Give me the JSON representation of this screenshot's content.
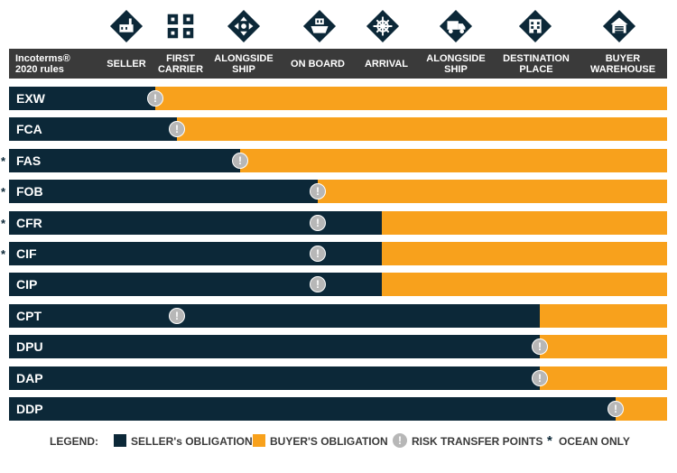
{
  "colors": {
    "seller": "#0c2838",
    "buyer": "#f8a11c",
    "risk": "#b7b7b7",
    "header": "#3a3a3a",
    "icon": "#0c2838"
  },
  "icons": [
    {
      "name": "factory-icon"
    },
    {
      "name": "carrier-boxes-icon"
    },
    {
      "name": "dock-crossroads-icon"
    },
    {
      "name": "ship-icon"
    },
    {
      "name": "arrival-ship-wheel-icon"
    },
    {
      "name": "truck-icon"
    },
    {
      "name": "destination-building-icon"
    },
    {
      "name": "warehouse-icon"
    }
  ],
  "header": {
    "title": "Incoterms®\n2020 rules",
    "columns": [
      "SELLER",
      "FIRST\nCARRIER",
      "ALONGSIDE\nSHIP",
      "ON BOARD",
      "ARRIVAL",
      "ALONGSIDE\nSHIP",
      "DESTINATION\nPLACE",
      "BUYER\nWAREHOUSE"
    ]
  },
  "rules": [
    {
      "code": "EXW",
      "ocean_only": false,
      "star": "",
      "seller_until_column": 1,
      "risk_column": 1
    },
    {
      "code": "FCA",
      "ocean_only": false,
      "star": "",
      "seller_until_column": 2,
      "risk_column": 2
    },
    {
      "code": "FAS",
      "ocean_only": true,
      "star": "*",
      "seller_until_column": 3,
      "risk_column": 3
    },
    {
      "code": "FOB",
      "ocean_only": true,
      "star": "*",
      "seller_until_column": 4,
      "risk_column": 4
    },
    {
      "code": "CFR",
      "ocean_only": true,
      "star": "*",
      "seller_until_column": 5,
      "risk_column": 4
    },
    {
      "code": "CIF",
      "ocean_only": true,
      "star": "*",
      "seller_until_column": 5,
      "risk_column": 4
    },
    {
      "code": "CIP",
      "ocean_only": false,
      "star": "",
      "seller_until_column": 5,
      "risk_column": 4
    },
    {
      "code": "CPT",
      "ocean_only": false,
      "star": "",
      "seller_until_column": 7,
      "risk_column": 2
    },
    {
      "code": "DPU",
      "ocean_only": false,
      "star": "",
      "seller_until_column": 7,
      "risk_column": 7
    },
    {
      "code": "DAP",
      "ocean_only": false,
      "star": "",
      "seller_until_column": 7,
      "risk_column": 7
    },
    {
      "code": "DDP",
      "ocean_only": false,
      "star": "",
      "seller_until_column": 8,
      "risk_column": 8
    }
  ],
  "risk_symbol": "!",
  "legend": {
    "title": "LEGEND:",
    "seller": "SELLER's OBLIGATION",
    "buyer": "BUYER'S OBLIGATION",
    "risk_symbol": "!",
    "risk": "RISK TRANSFER POINTS",
    "ocean_symbol": "*",
    "ocean": "OCEAN ONLY"
  }
}
